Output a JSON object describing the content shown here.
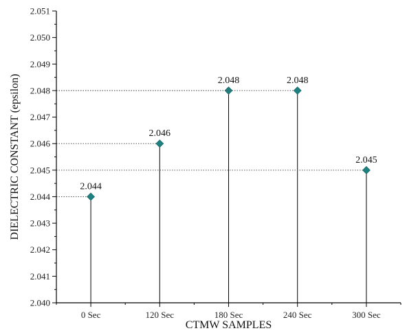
{
  "chart_data": {
    "type": "scatter",
    "style": "stem",
    "title": "",
    "xlabel": "CTMW SAMPLES",
    "ylabel": "DIELECTRIC CONSTANT (epsilon)",
    "categories": [
      "0 Sec",
      "120 Sec",
      "180 Sec",
      "240 Sec",
      "300 Sec"
    ],
    "values": [
      2.044,
      2.046,
      2.048,
      2.048,
      2.045
    ],
    "data_labels": [
      "2.044",
      "2.046",
      "2.048",
      "2.048",
      "2.045"
    ],
    "ylim": [
      2.04,
      2.051
    ],
    "yticks": [
      "2.040",
      "2.041",
      "2.042",
      "2.043",
      "2.044",
      "2.045",
      "2.046",
      "2.047",
      "2.048",
      "2.049",
      "2.050",
      "2.051"
    ],
    "marker": "diamond",
    "marker_color": "#1f8080",
    "grid": false,
    "reference_lines": "dotted horizontal line from y-axis to each point"
  }
}
